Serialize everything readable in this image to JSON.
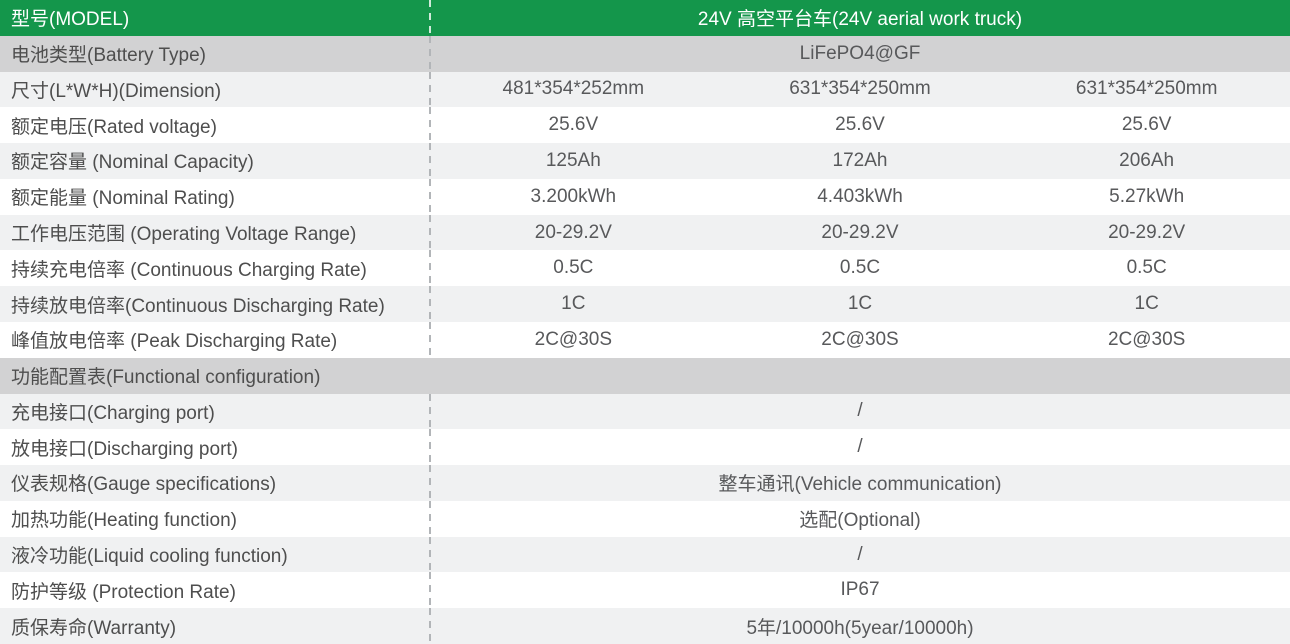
{
  "header": {
    "label": "型号(MODEL)",
    "value": "24V 高空平台车(24V aerial work truck)"
  },
  "rows": {
    "battery_type": {
      "label": "电池类型(Battery Type)",
      "value": "LiFePO4@GF"
    },
    "dimension": {
      "label": "尺寸(L*W*H)(Dimension)",
      "values": [
        "481*354*252mm",
        "631*354*250mm",
        "631*354*250mm"
      ]
    },
    "rated_voltage": {
      "label": "额定电压(Rated voltage)",
      "values": [
        "25.6V",
        "25.6V",
        "25.6V"
      ]
    },
    "nominal_capacity": {
      "label": "额定容量 (Nominal Capacity)",
      "values": [
        "125Ah",
        "172Ah",
        "206Ah"
      ]
    },
    "nominal_rating": {
      "label": "额定能量 (Nominal Rating)",
      "values": [
        "3.200kWh",
        "4.403kWh",
        "5.27kWh"
      ]
    },
    "operating_voltage_range": {
      "label": "工作电压范围 (Operating Voltage Range)",
      "values": [
        "20-29.2V",
        "20-29.2V",
        "20-29.2V"
      ]
    },
    "continuous_charging_rate": {
      "label": "持续充电倍率 (Continuous Charging Rate)",
      "values": [
        "0.5C",
        "0.5C",
        "0.5C"
      ]
    },
    "continuous_discharging_rate": {
      "label": "持续放电倍率(Continuous Discharging Rate)",
      "values": [
        "1C",
        "1C",
        "1C"
      ]
    },
    "peak_discharging_rate": {
      "label": "峰值放电倍率 (Peak Discharging Rate)",
      "values": [
        "2C@30S",
        "2C@30S",
        "2C@30S"
      ]
    },
    "functional_configuration": {
      "label": "功能配置表(Functional configuration)"
    },
    "charging_port": {
      "label": "充电接口(Charging port)",
      "value": "/"
    },
    "discharging_port": {
      "label": "放电接口(Discharging port)",
      "value": "/"
    },
    "gauge_specifications": {
      "label": "仪表规格(Gauge specifications)",
      "value": "整车通讯(Vehicle communication)"
    },
    "heating_function": {
      "label": "加热功能(Heating function)",
      "value": "选配(Optional)"
    },
    "liquid_cooling_function": {
      "label": "液冷功能(Liquid cooling function)",
      "value": "/"
    },
    "protection_rate": {
      "label": "防护等级 (Protection Rate)",
      "value": "IP67"
    },
    "warranty": {
      "label": "质保寿命(Warranty)",
      "value": "5年/10000h(5year/10000h)"
    }
  },
  "colors": {
    "header_green": "#14964b",
    "section_gray": "#d2d2d3",
    "row_alt_gray": "#f0f1f2",
    "label_text": "#4e4e4e",
    "value_text": "#58595b",
    "divider_dash": "#b2b5b8"
  }
}
